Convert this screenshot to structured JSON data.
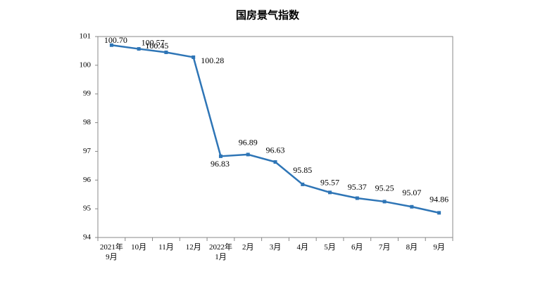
{
  "chart_data": {
    "type": "line",
    "title": "国房景气指数",
    "categories": [
      "2021年\n9月",
      "10月",
      "11月",
      "12月",
      "2022年\n1月",
      "2月",
      "3月",
      "4月",
      "5月",
      "6月",
      "7月",
      "8月",
      "9月"
    ],
    "values": [
      100.7,
      100.57,
      100.45,
      100.28,
      96.83,
      96.89,
      96.63,
      95.85,
      95.57,
      95.37,
      95.25,
      95.07,
      94.86
    ],
    "value_labels": [
      "100.70",
      "100.57",
      "100.45",
      "100.28",
      "96.83",
      "96.89",
      "96.63",
      "95.85",
      "95.57",
      "95.37",
      "95.25",
      "95.07",
      "94.86"
    ],
    "color": "#2e75b6",
    "ylim": [
      94,
      101
    ],
    "yticks": [
      94,
      95,
      96,
      97,
      98,
      99,
      100,
      101
    ]
  }
}
